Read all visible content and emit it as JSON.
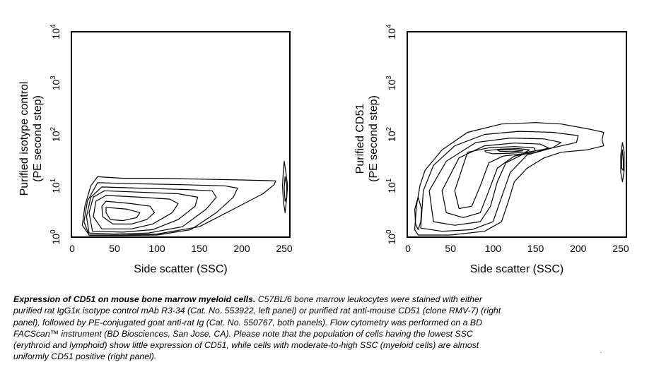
{
  "figure": {
    "panels": [
      {
        "id": "left",
        "ylabel_line1": "Purified isotype control",
        "ylabel_line2": "(PE second step)",
        "xlabel": "Side scatter (SSC)"
      },
      {
        "id": "right",
        "ylabel_line1": "Purified CD51",
        "ylabel_line2": "(PE second step)",
        "xlabel": "Side scatter (SSC)"
      }
    ],
    "xticks": [
      "0",
      "50",
      "100",
      "150",
      "200",
      "250"
    ],
    "yticks": [
      {
        "base": "10",
        "exp": "0"
      },
      {
        "base": "10",
        "exp": "1"
      },
      {
        "base": "10",
        "exp": "2"
      },
      {
        "base": "10",
        "exp": "3"
      },
      {
        "base": "10",
        "exp": "4"
      }
    ]
  },
  "chart_data": [
    {
      "type": "contour",
      "panel": "left",
      "xlabel": "Side scatter (SSC)",
      "ylabel": "Purified isotype control (PE second step)",
      "xlim": [
        0,
        255
      ],
      "ylim": [
        1,
        10000
      ],
      "yscale": "log",
      "xticks": [
        0,
        50,
        100,
        150,
        200,
        250
      ],
      "yticks": [
        1,
        10,
        100,
        1000,
        10000
      ],
      "contours": [
        [
          [
            30,
            15
          ],
          [
            60,
            14
          ],
          [
            100,
            14
          ],
          [
            150,
            13.5
          ],
          [
            200,
            13
          ],
          [
            240,
            12.5
          ],
          [
            238,
            10.5
          ],
          [
            225,
            7
          ],
          [
            190,
            3.5
          ],
          [
            150,
            1.6
          ],
          [
            100,
            1.15
          ],
          [
            60,
            1.1
          ],
          [
            20,
            1.1
          ],
          [
            12,
            1.7
          ],
          [
            15,
            4
          ],
          [
            22,
            10
          ]
        ],
        [
          [
            30,
            11.5
          ],
          [
            70,
            11
          ],
          [
            130,
            10.5
          ],
          [
            180,
            10
          ],
          [
            195,
            9
          ],
          [
            190,
            6
          ],
          [
            170,
            3
          ],
          [
            140,
            1.4
          ],
          [
            100,
            1.1
          ],
          [
            60,
            1.08
          ],
          [
            20,
            1.08
          ],
          [
            14,
            2
          ],
          [
            18,
            5
          ]
        ],
        [
          [
            35,
            9.5
          ],
          [
            80,
            9
          ],
          [
            130,
            8.5
          ],
          [
            165,
            8
          ],
          [
            170,
            6
          ],
          [
            158,
            3.5
          ],
          [
            130,
            1.6
          ],
          [
            90,
            1.2
          ],
          [
            50,
            1.15
          ],
          [
            20,
            1.2
          ],
          [
            17,
            2.5
          ],
          [
            22,
            6
          ]
        ],
        [
          [
            38,
            8
          ],
          [
            80,
            7.5
          ],
          [
            125,
            7
          ],
          [
            148,
            6
          ],
          [
            145,
            4
          ],
          [
            125,
            2.2
          ],
          [
            95,
            1.4
          ],
          [
            60,
            1.25
          ],
          [
            24,
            1.3
          ],
          [
            20,
            3
          ],
          [
            25,
            6
          ]
        ],
        [
          [
            40,
            6.5
          ],
          [
            80,
            6
          ],
          [
            115,
            5.5
          ],
          [
            125,
            4.5
          ],
          [
            118,
            3
          ],
          [
            95,
            1.8
          ],
          [
            70,
            1.45
          ],
          [
            35,
            1.45
          ],
          [
            25,
            2.5
          ],
          [
            28,
            5
          ]
        ],
        [
          [
            40,
            5
          ],
          [
            70,
            4.5
          ],
          [
            92,
            4
          ],
          [
            97,
            3
          ],
          [
            88,
            2.2
          ],
          [
            70,
            1.8
          ],
          [
            48,
            1.8
          ],
          [
            36,
            2.5
          ],
          [
            35,
            4
          ]
        ],
        [
          [
            40,
            3.8
          ],
          [
            65,
            3.5
          ],
          [
            80,
            3
          ],
          [
            76,
            2.4
          ],
          [
            60,
            2.1
          ],
          [
            45,
            2.2
          ],
          [
            40,
            3
          ]
        ],
        [
          [
            250,
            30
          ],
          [
            252,
            18
          ],
          [
            254,
            10
          ],
          [
            253,
            6
          ],
          [
            251,
            3
          ],
          [
            249,
            5
          ],
          [
            248,
            10
          ],
          [
            249,
            20
          ]
        ],
        [
          [
            251,
            15
          ],
          [
            253,
            10
          ],
          [
            253,
            6
          ],
          [
            251,
            5
          ],
          [
            250,
            9
          ]
        ]
      ]
    },
    {
      "type": "contour",
      "panel": "right",
      "xlabel": "Side scatter (SSC)",
      "ylabel": "Purified CD51 (PE second step)",
      "xlim": [
        0,
        255
      ],
      "ylim": [
        1,
        10000
      ],
      "yscale": "log",
      "xticks": [
        0,
        50,
        100,
        150,
        200,
        250
      ],
      "yticks": [
        1,
        10,
        100,
        1000,
        10000
      ],
      "contours": [
        [
          [
            20,
            20
          ],
          [
            40,
            50
          ],
          [
            70,
            110
          ],
          [
            110,
            160
          ],
          [
            150,
            170
          ],
          [
            180,
            160
          ],
          [
            215,
            125
          ],
          [
            230,
            110
          ],
          [
            228,
            80
          ],
          [
            230,
            60
          ],
          [
            210,
            50
          ],
          [
            180,
            45
          ],
          [
            160,
            35
          ],
          [
            140,
            22
          ],
          [
            125,
            12
          ],
          [
            118,
            5
          ],
          [
            110,
            2
          ],
          [
            90,
            1.3
          ],
          [
            50,
            1.1
          ],
          [
            12,
            1.1
          ],
          [
            8,
            1.4
          ],
          [
            10,
            4
          ],
          [
            14,
            10
          ]
        ],
        [
          [
            30,
            25
          ],
          [
            55,
            60
          ],
          [
            90,
            100
          ],
          [
            130,
            115
          ],
          [
            170,
            110
          ],
          [
            200,
            95
          ],
          [
            198,
            70
          ],
          [
            170,
            55
          ],
          [
            140,
            40
          ],
          [
            120,
            18
          ],
          [
            110,
            6
          ],
          [
            100,
            2
          ],
          [
            75,
            1.4
          ],
          [
            40,
            1.3
          ],
          [
            15,
            1.5
          ],
          [
            18,
            8
          ]
        ],
        [
          [
            45,
            30
          ],
          [
            80,
            70
          ],
          [
            120,
            85
          ],
          [
            160,
            82
          ],
          [
            180,
            70
          ],
          [
            170,
            55
          ],
          [
            140,
            45
          ],
          [
            115,
            28
          ],
          [
            105,
            12
          ],
          [
            97,
            4
          ],
          [
            85,
            2
          ],
          [
            55,
            1.7
          ],
          [
            30,
            2
          ],
          [
            25,
            8
          ]
        ],
        [
          [
            60,
            35
          ],
          [
            90,
            60
          ],
          [
            125,
            68
          ],
          [
            155,
            65
          ],
          [
            165,
            55
          ],
          [
            150,
            45
          ],
          [
            125,
            38
          ],
          [
            105,
            22
          ],
          [
            95,
            8
          ],
          [
            85,
            3
          ],
          [
            65,
            2.4
          ],
          [
            45,
            3
          ],
          [
            40,
            8
          ]
        ],
        [
          [
            70,
            45
          ],
          [
            95,
            55
          ],
          [
            125,
            58
          ],
          [
            148,
            55
          ],
          [
            150,
            48
          ],
          [
            135,
            42
          ],
          [
            112,
            38
          ],
          [
            95,
            28
          ],
          [
            85,
            10
          ],
          [
            75,
            4
          ],
          [
            60,
            3.6
          ],
          [
            55,
            8
          ]
        ],
        [
          [
            90,
            48
          ],
          [
            110,
            52
          ],
          [
            130,
            53
          ],
          [
            143,
            50
          ],
          [
            138,
            45
          ],
          [
            120,
            43
          ],
          [
            100,
            42
          ],
          [
            92,
            45
          ]
        ],
        [
          [
            105,
            50
          ],
          [
            125,
            50
          ],
          [
            135,
            48
          ],
          [
            122,
            46
          ],
          [
            108,
            47
          ]
        ],
        [
          [
            12,
            6
          ],
          [
            16,
            3.5
          ],
          [
            15,
            2
          ],
          [
            12,
            1.4
          ],
          [
            9,
            1.8
          ],
          [
            8,
            3.5
          ]
        ],
        [
          [
            252,
            70
          ],
          [
            254,
            45
          ],
          [
            254,
            20
          ],
          [
            252,
            12
          ],
          [
            250,
            18
          ],
          [
            250,
            40
          ]
        ],
        [
          [
            252,
            50
          ],
          [
            253,
            30
          ],
          [
            253,
            20
          ],
          [
            251,
            22
          ],
          [
            251,
            35
          ]
        ]
      ]
    }
  ],
  "caption": {
    "title": "Expression of CD51 on mouse bone marrow myeloid cells.",
    "lines": [
      " C57BL/6 bone marrow leukocytes were stained with either",
      "purified rat IgG1κ isotype control mAb R3-34 (Cat. No. 553922, left panel) or purified rat anti-mouse CD51 (clone RMV-7) (right",
      "panel), followed by PE-conjugated goat anti-rat Ig (Cat. No. 550767, both panels). Flow cytometry was performed on a BD",
      "FACScan™ instrument (BD Biosciences, San Jose, CA). Please note that the population of cells having the lowest SSC",
      "(erythroid and lymphoid) show little expression of CD51, while cells with moderate-to-high SSC (myeloid cells) are almost",
      "uniformly CD51 positive (right panel)."
    ],
    "stray_mark": "."
  },
  "colors": {
    "ink": "#000000",
    "background": "#ffffff",
    "stray_mark": "#6a7cc9"
  }
}
